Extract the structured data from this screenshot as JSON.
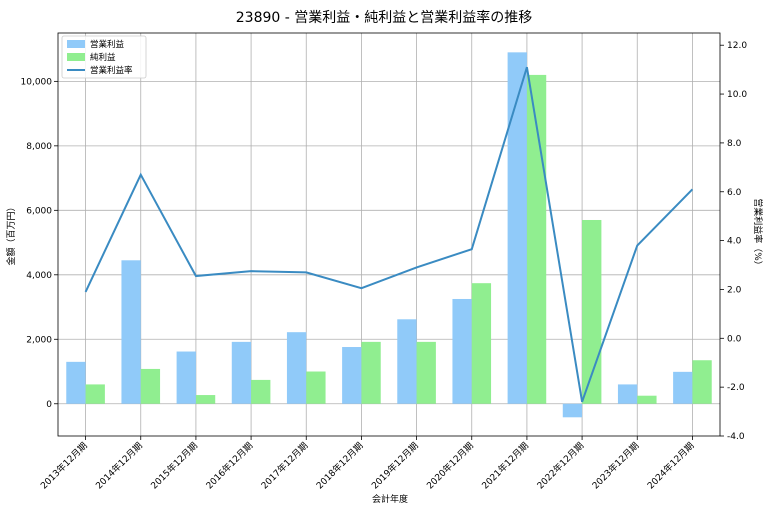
{
  "chart_data": {
    "type": "bar",
    "title": "23890 - 営業利益・純利益と営業利益率の推移",
    "xlabel": "会計年度",
    "ylabel_left": "金額（百万円）",
    "ylabel_right": "営業利益率（%）",
    "categories": [
      "2013年12月期",
      "2014年12月期",
      "2015年12月期",
      "2016年12月期",
      "2017年12月期",
      "2018年12月期",
      "2019年12月期",
      "2020年12月期",
      "2021年12月期",
      "2022年12月期",
      "2023年12月期",
      "2024年12月期"
    ],
    "y_left": {
      "lim": [
        -1000,
        11500
      ],
      "ticks": [
        0,
        2000,
        4000,
        6000,
        8000,
        10000
      ],
      "tick_labels": [
        "0",
        "2,000",
        "4,000",
        "6,000",
        "8,000",
        "10,000"
      ]
    },
    "y_right": {
      "lim": [
        -4.0,
        12.5
      ],
      "ticks": [
        -4,
        -2,
        0,
        2,
        4,
        6,
        8,
        10,
        12
      ],
      "tick_labels": [
        "-4.0",
        "-2.0",
        "0.0",
        "2.0",
        "4.0",
        "6.0",
        "8.0",
        "10.0",
        "12.0"
      ]
    },
    "grid": true,
    "legend_position": "top-left",
    "series": [
      {
        "name": "営業利益",
        "kind": "bar",
        "axis": "left",
        "color": "#90caf9",
        "values": [
          1300,
          4450,
          1620,
          1920,
          2220,
          1760,
          2620,
          3250,
          10900,
          -420,
          600,
          990
        ]
      },
      {
        "name": "純利益",
        "kind": "bar",
        "axis": "left",
        "color": "#90ee90",
        "values": [
          600,
          1080,
          270,
          740,
          1000,
          1920,
          1920,
          3740,
          10200,
          5700,
          250,
          1350
        ]
      },
      {
        "name": "営業利益率",
        "kind": "line",
        "axis": "right",
        "color": "#3a8bc2",
        "values": [
          1.9,
          6.7,
          2.55,
          2.75,
          2.7,
          2.05,
          2.9,
          3.65,
          11.1,
          -2.6,
          3.8,
          6.1
        ]
      }
    ]
  }
}
